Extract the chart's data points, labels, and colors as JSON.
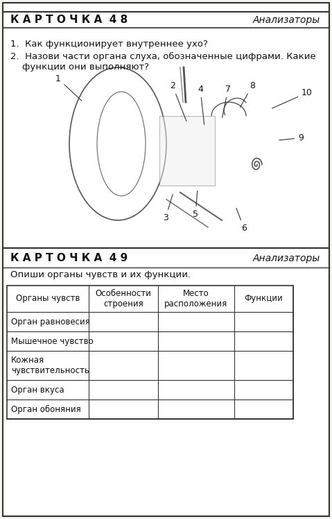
{
  "card48_title": "К А Р Т О Ч К А  4 8",
  "card48_subtitle": "Анализаторы",
  "card48_q1": "1.  Как функционирует внутреннее ухо?",
  "card48_q2": "2.  Назови части органа слуха, обозначенные цифрами. Какие\n    функции они выполняют?",
  "card49_title": "К А Р Т О Ч К А  4 9",
  "card49_subtitle": "Анализаторы",
  "card49_intro": "Опиши органы чувств и их функции.",
  "table_headers": [
    "Органы чувств",
    "Особенности\nстроения",
    "Место\nрасположения",
    "Функции"
  ],
  "table_rows": [
    [
      "Орган равновесия",
      "",
      "",
      ""
    ],
    [
      "Мышечное чувство",
      "",
      "",
      ""
    ],
    [
      "Кожная\nчувствительность",
      "",
      "",
      ""
    ],
    [
      "Орган вкуса",
      "",
      "",
      ""
    ],
    [
      "Орган обоняния",
      "",
      "",
      ""
    ]
  ],
  "bg_color": "#f5f5f0",
  "card_bg": "#ffffff",
  "border_color": "#333333",
  "text_color": "#111111"
}
